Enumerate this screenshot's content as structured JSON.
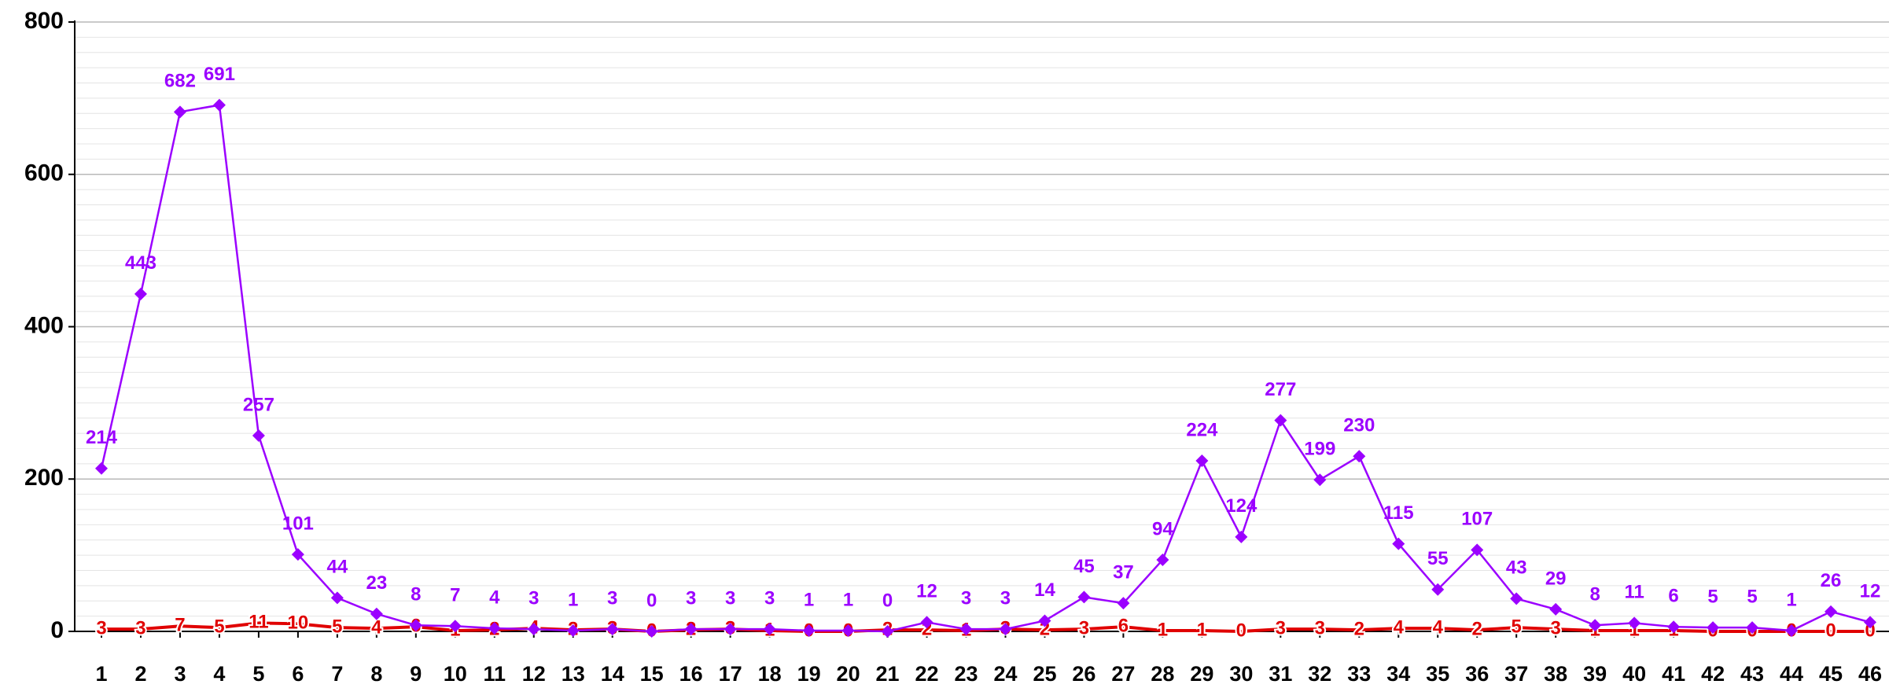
{
  "chart_data": {
    "type": "line",
    "categories": [
      "1",
      "2",
      "3",
      "4",
      "5",
      "6",
      "7",
      "8",
      "9",
      "10",
      "11",
      "12",
      "13",
      "14",
      "15",
      "16",
      "17",
      "18",
      "19",
      "20",
      "21",
      "22",
      "23",
      "24",
      "25",
      "26",
      "27",
      "28",
      "29",
      "30",
      "31",
      "32",
      "33",
      "34",
      "35",
      "36",
      "37",
      "38",
      "39",
      "40",
      "41",
      "42",
      "43",
      "44",
      "45",
      "46"
    ],
    "series": [
      {
        "color": "#9b00ff",
        "marker": "diamond",
        "values": [
          214,
          443,
          682,
          691,
          257,
          101,
          44,
          23,
          8,
          7,
          4,
          3,
          1,
          3,
          0,
          3,
          3,
          3,
          1,
          1,
          0,
          12,
          3,
          3,
          14,
          45,
          37,
          94,
          224,
          124,
          277,
          199,
          230,
          115,
          55,
          107,
          43,
          29,
          8,
          11,
          6,
          5,
          5,
          1,
          26,
          12
        ]
      },
      {
        "color": "#e00000",
        "marker": "none",
        "values": [
          3,
          3,
          7,
          5,
          11,
          10,
          5,
          4,
          6,
          1,
          2,
          4,
          2,
          3,
          0,
          2,
          3,
          1,
          0,
          0,
          2,
          2,
          1,
          3,
          2,
          3,
          6,
          1,
          1,
          0,
          3,
          3,
          2,
          4,
          4,
          2,
          5,
          3,
          1,
          1,
          1,
          0,
          0,
          0,
          0,
          0
        ]
      }
    ],
    "ylim": [
      0,
      800
    ],
    "yticks": [
      0,
      200,
      400,
      600,
      800
    ],
    "grid": true
  }
}
